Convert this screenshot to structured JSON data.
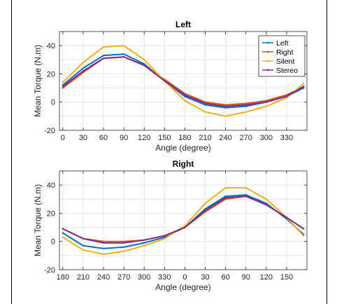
{
  "figure": {
    "legend": [
      "Left",
      "Right",
      "Silent",
      "Stereo"
    ]
  },
  "chart_data": [
    {
      "type": "line",
      "title": "Left",
      "xlabel": "Angle (degree)",
      "ylabel": "Mean Torque (N.m)",
      "x": [
        0,
        30,
        60,
        90,
        120,
        150,
        180,
        210,
        240,
        270,
        300,
        330,
        355
      ],
      "xticks": [
        "0",
        "30",
        "60",
        "90",
        "120",
        "150",
        "180",
        "210",
        "240",
        "270",
        "300",
        "330"
      ],
      "yticks": [
        "-20",
        "0",
        "20",
        "40"
      ],
      "xlim": [
        -5,
        360
      ],
      "ylim": [
        -20,
        50
      ],
      "grid": true,
      "legend_position": "top-right",
      "series": [
        {
          "name": "Left",
          "color": "#0072BD",
          "values": [
            12,
            24,
            33,
            34,
            27,
            15,
            4,
            -2,
            -4,
            -3,
            0,
            4,
            10
          ]
        },
        {
          "name": "Right",
          "color": "#D95319",
          "values": [
            10,
            21,
            31,
            32,
            26,
            16,
            6,
            0,
            -2,
            -1,
            1,
            5,
            11
          ]
        },
        {
          "name": "Silent",
          "color": "#EDB120",
          "values": [
            14,
            28,
            39,
            40,
            30,
            15,
            1,
            -7,
            -10,
            -7,
            -3,
            3,
            13
          ]
        },
        {
          "name": "Stereo",
          "color": "#7E2F8E",
          "values": [
            11,
            22,
            31,
            32,
            26,
            15,
            5,
            -1,
            -3,
            -2,
            0,
            4,
            11
          ]
        }
      ]
    },
    {
      "type": "line",
      "title": "Right",
      "xlabel": "Angle (degree)",
      "ylabel": "Mean Torque (N.m)",
      "x": [
        180,
        210,
        240,
        270,
        300,
        330,
        360,
        390,
        420,
        450,
        480,
        510,
        535
      ],
      "xticks": [
        "180",
        "210",
        "240",
        "270",
        "300",
        "330",
        "0",
        "30",
        "60",
        "90",
        "120",
        "150"
      ],
      "yticks": [
        "-20",
        "0",
        "20",
        "40"
      ],
      "xlim": [
        175,
        540
      ],
      "ylim": [
        -20,
        50
      ],
      "grid": true,
      "series": [
        {
          "name": "Left",
          "color": "#0072BD",
          "values": [
            6,
            -3,
            -5,
            -4,
            -1,
            3,
            10,
            23,
            32,
            33,
            27,
            16,
            5
          ]
        },
        {
          "name": "Right",
          "color": "#D95319",
          "values": [
            9,
            2,
            0,
            0,
            1,
            4,
            10,
            21,
            30,
            32,
            26,
            17,
            9
          ]
        },
        {
          "name": "Silent",
          "color": "#EDB120",
          "values": [
            3,
            -6,
            -9,
            -7,
            -3,
            2,
            11,
            27,
            38,
            38,
            30,
            17,
            4
          ]
        },
        {
          "name": "Stereo",
          "color": "#7E2F8E",
          "values": [
            9,
            2,
            -1,
            -1,
            1,
            4,
            10,
            22,
            31,
            32,
            26,
            17,
            9
          ]
        }
      ]
    }
  ]
}
